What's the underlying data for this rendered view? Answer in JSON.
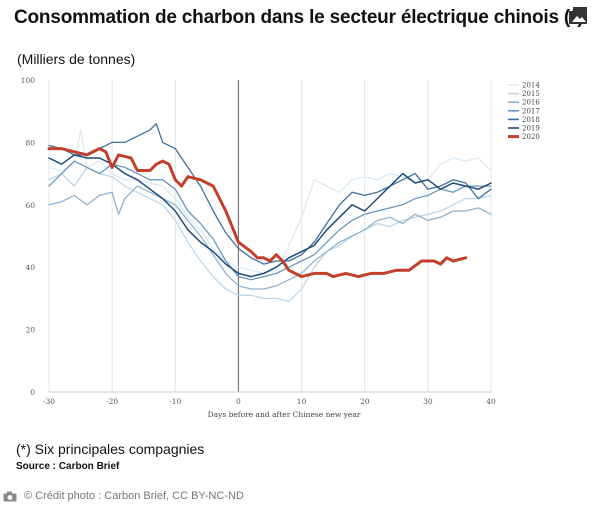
{
  "header": {
    "title": "Consommation de charbon dans le secteur électrique chinois (*)",
    "subtitle": "(Milliers de tonnes)"
  },
  "footer": {
    "footnote": "(*) Six principales compagnies",
    "source": "Source : Carbon Brief",
    "credit": "© Crédit photo : Carbon Brief, CC BY-NC-ND"
  },
  "icons": {
    "corner": "image-gallery-icon",
    "credit": "camera-icon"
  },
  "chart_data": {
    "type": "line",
    "title": "",
    "xlabel": "Days before and after Chinese new year",
    "ylabel": "",
    "xlim": [
      -30,
      40
    ],
    "ylim": [
      0,
      100
    ],
    "x_ticks": [
      -30,
      -20,
      -10,
      0,
      10,
      20,
      30,
      40
    ],
    "y_ticks": [
      0,
      20,
      40,
      60,
      80,
      100
    ],
    "grid": "vertical",
    "reference_line_x": 0,
    "legend_position": "top-right",
    "series": [
      {
        "name": "2014",
        "color": "#d9e9f5",
        "width": 1.3,
        "points": [
          [
            -30,
            72
          ],
          [
            -28,
            71
          ],
          [
            -26,
            73
          ],
          [
            -25,
            84
          ],
          [
            -24,
            72
          ],
          [
            -22,
            74
          ],
          [
            -20,
            70
          ],
          [
            -18,
            68
          ],
          [
            -16,
            68
          ],
          [
            -14,
            67
          ],
          [
            -12,
            66
          ],
          [
            -10,
            62
          ],
          [
            -8,
            56
          ],
          [
            -6,
            52
          ],
          [
            -4,
            46
          ],
          [
            -2,
            42
          ],
          [
            0,
            40
          ],
          [
            2,
            39
          ],
          [
            4,
            38
          ],
          [
            6,
            39
          ],
          [
            8,
            47
          ],
          [
            10,
            56
          ],
          [
            12,
            68
          ],
          [
            14,
            66
          ],
          [
            16,
            64
          ],
          [
            18,
            68
          ],
          [
            20,
            69
          ],
          [
            22,
            68
          ],
          [
            24,
            70
          ],
          [
            26,
            69
          ],
          [
            28,
            67
          ],
          [
            30,
            68
          ],
          [
            32,
            73
          ],
          [
            34,
            75
          ],
          [
            36,
            74
          ],
          [
            38,
            75
          ],
          [
            40,
            71
          ]
        ]
      },
      {
        "name": "2015",
        "color": "#bcd6ea",
        "width": 1.3,
        "points": [
          [
            -30,
            68
          ],
          [
            -28,
            70
          ],
          [
            -26,
            66
          ],
          [
            -24,
            72
          ],
          [
            -22,
            70
          ],
          [
            -20,
            69
          ],
          [
            -18,
            66
          ],
          [
            -16,
            64
          ],
          [
            -14,
            62
          ],
          [
            -12,
            60
          ],
          [
            -10,
            55
          ],
          [
            -8,
            48
          ],
          [
            -6,
            42
          ],
          [
            -4,
            37
          ],
          [
            -2,
            33
          ],
          [
            0,
            31
          ],
          [
            2,
            31
          ],
          [
            4,
            30
          ],
          [
            6,
            30
          ],
          [
            8,
            29
          ],
          [
            10,
            33
          ],
          [
            12,
            40
          ],
          [
            14,
            45
          ],
          [
            16,
            47
          ],
          [
            18,
            50
          ],
          [
            20,
            52
          ],
          [
            22,
            54
          ],
          [
            24,
            53
          ],
          [
            26,
            55
          ],
          [
            28,
            56
          ],
          [
            30,
            57
          ],
          [
            32,
            58
          ],
          [
            34,
            60
          ],
          [
            36,
            62
          ],
          [
            38,
            62
          ],
          [
            40,
            63
          ]
        ]
      },
      {
        "name": "2016",
        "color": "#8fb3cf",
        "width": 1.3,
        "points": [
          [
            -30,
            60
          ],
          [
            -28,
            61
          ],
          [
            -26,
            63
          ],
          [
            -24,
            60
          ],
          [
            -22,
            63
          ],
          [
            -20,
            64
          ],
          [
            -19,
            57
          ],
          [
            -18,
            62
          ],
          [
            -16,
            66
          ],
          [
            -14,
            64
          ],
          [
            -12,
            62
          ],
          [
            -10,
            60
          ],
          [
            -8,
            55
          ],
          [
            -6,
            50
          ],
          [
            -4,
            44
          ],
          [
            -2,
            38
          ],
          [
            0,
            34
          ],
          [
            2,
            33
          ],
          [
            4,
            33
          ],
          [
            6,
            34
          ],
          [
            8,
            36
          ],
          [
            10,
            38
          ],
          [
            12,
            42
          ],
          [
            14,
            45
          ],
          [
            16,
            48
          ],
          [
            18,
            50
          ],
          [
            20,
            52
          ],
          [
            22,
            55
          ],
          [
            24,
            56
          ],
          [
            26,
            54
          ],
          [
            28,
            57
          ],
          [
            30,
            55
          ],
          [
            32,
            56
          ],
          [
            34,
            58
          ],
          [
            36,
            58
          ],
          [
            38,
            59
          ],
          [
            40,
            57
          ]
        ]
      },
      {
        "name": "2017",
        "color": "#6a96bd",
        "width": 1.3,
        "points": [
          [
            -30,
            66
          ],
          [
            -28,
            70
          ],
          [
            -26,
            74
          ],
          [
            -24,
            72
          ],
          [
            -22,
            70
          ],
          [
            -20,
            73
          ],
          [
            -18,
            72
          ],
          [
            -16,
            70
          ],
          [
            -14,
            68
          ],
          [
            -12,
            68
          ],
          [
            -10,
            65
          ],
          [
            -8,
            58
          ],
          [
            -6,
            54
          ],
          [
            -4,
            49
          ],
          [
            -2,
            42
          ],
          [
            0,
            37
          ],
          [
            2,
            36
          ],
          [
            4,
            37
          ],
          [
            6,
            38
          ],
          [
            8,
            40
          ],
          [
            10,
            42
          ],
          [
            12,
            44
          ],
          [
            14,
            48
          ],
          [
            16,
            52
          ],
          [
            18,
            55
          ],
          [
            20,
            57
          ],
          [
            22,
            58
          ],
          [
            24,
            59
          ],
          [
            26,
            60
          ],
          [
            28,
            62
          ],
          [
            30,
            63
          ],
          [
            32,
            65
          ],
          [
            34,
            64
          ],
          [
            36,
            66
          ],
          [
            38,
            66
          ],
          [
            40,
            66
          ]
        ]
      },
      {
        "name": "2018",
        "color": "#3f6f9e",
        "width": 1.3,
        "points": [
          [
            -30,
            79
          ],
          [
            -28,
            78
          ],
          [
            -26,
            76
          ],
          [
            -24,
            76
          ],
          [
            -22,
            78
          ],
          [
            -20,
            80
          ],
          [
            -18,
            80
          ],
          [
            -16,
            82
          ],
          [
            -14,
            84
          ],
          [
            -13,
            86
          ],
          [
            -12,
            80
          ],
          [
            -10,
            78
          ],
          [
            -8,
            72
          ],
          [
            -6,
            66
          ],
          [
            -4,
            58
          ],
          [
            -2,
            51
          ],
          [
            0,
            46
          ],
          [
            2,
            43
          ],
          [
            4,
            41
          ],
          [
            6,
            42
          ],
          [
            8,
            42
          ],
          [
            10,
            44
          ],
          [
            12,
            48
          ],
          [
            14,
            54
          ],
          [
            16,
            60
          ],
          [
            18,
            64
          ],
          [
            20,
            63
          ],
          [
            22,
            64
          ],
          [
            24,
            66
          ],
          [
            26,
            68
          ],
          [
            28,
            70
          ],
          [
            30,
            65
          ],
          [
            32,
            66
          ],
          [
            34,
            68
          ],
          [
            36,
            67
          ],
          [
            38,
            62
          ],
          [
            40,
            65
          ]
        ]
      },
      {
        "name": "2019",
        "color": "#1f4a7a",
        "width": 1.5,
        "points": [
          [
            -30,
            75
          ],
          [
            -28,
            73
          ],
          [
            -26,
            76
          ],
          [
            -24,
            75
          ],
          [
            -22,
            75
          ],
          [
            -20,
            73
          ],
          [
            -18,
            70
          ],
          [
            -16,
            68
          ],
          [
            -14,
            65
          ],
          [
            -12,
            62
          ],
          [
            -10,
            58
          ],
          [
            -8,
            52
          ],
          [
            -6,
            48
          ],
          [
            -4,
            45
          ],
          [
            -2,
            41
          ],
          [
            0,
            38
          ],
          [
            2,
            37
          ],
          [
            4,
            38
          ],
          [
            6,
            40
          ],
          [
            8,
            43
          ],
          [
            10,
            45
          ],
          [
            12,
            47
          ],
          [
            14,
            52
          ],
          [
            16,
            56
          ],
          [
            18,
            60
          ],
          [
            20,
            58
          ],
          [
            22,
            62
          ],
          [
            24,
            66
          ],
          [
            26,
            70
          ],
          [
            28,
            67
          ],
          [
            30,
            68
          ],
          [
            32,
            65
          ],
          [
            34,
            67
          ],
          [
            36,
            66
          ],
          [
            38,
            65
          ],
          [
            40,
            67
          ]
        ]
      },
      {
        "name": "2020",
        "color": "#c2402b",
        "width": 3,
        "points": [
          [
            -30,
            78
          ],
          [
            -28,
            78
          ],
          [
            -26,
            77
          ],
          [
            -24,
            76
          ],
          [
            -22,
            78
          ],
          [
            -21,
            77
          ],
          [
            -20,
            72
          ],
          [
            -19,
            76
          ],
          [
            -17,
            75
          ],
          [
            -16,
            71
          ],
          [
            -14,
            71
          ],
          [
            -13,
            73
          ],
          [
            -12,
            74
          ],
          [
            -11,
            73
          ],
          [
            -10,
            68
          ],
          [
            -9,
            66
          ],
          [
            -8,
            69
          ],
          [
            -6,
            68
          ],
          [
            -4,
            66
          ],
          [
            -2,
            58
          ],
          [
            0,
            48
          ],
          [
            2,
            45
          ],
          [
            3,
            43
          ],
          [
            4,
            43
          ],
          [
            5,
            42
          ],
          [
            6,
            44
          ],
          [
            7,
            42
          ],
          [
            8,
            39
          ],
          [
            10,
            37
          ],
          [
            12,
            38
          ],
          [
            14,
            38
          ],
          [
            15,
            37
          ],
          [
            17,
            38
          ],
          [
            19,
            37
          ],
          [
            21,
            38
          ],
          [
            23,
            38
          ],
          [
            25,
            39
          ],
          [
            27,
            39
          ],
          [
            29,
            42
          ],
          [
            31,
            42
          ],
          [
            32,
            41
          ],
          [
            33,
            43
          ],
          [
            34,
            42
          ],
          [
            36,
            43
          ]
        ]
      }
    ]
  }
}
